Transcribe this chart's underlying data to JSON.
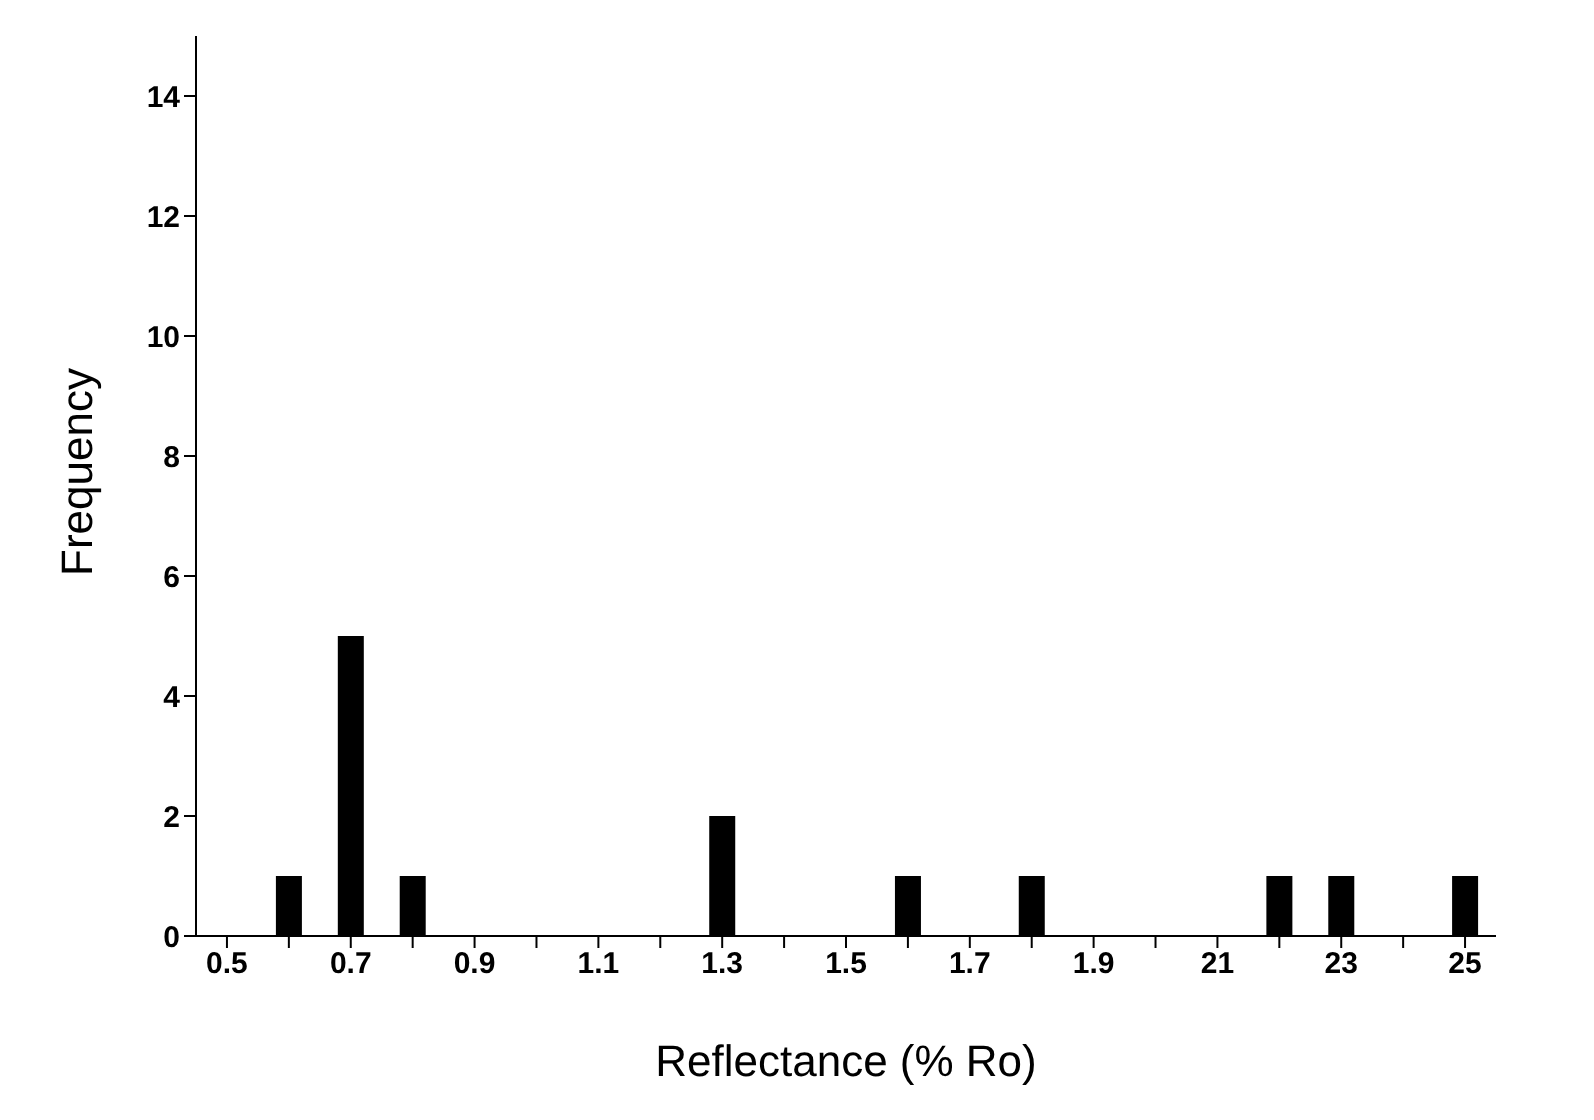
{
  "chart_data": {
    "type": "bar",
    "xlabel": "Reflectance  (% Ro)",
    "ylabel": "Frequency",
    "categories": [
      "0.5",
      null,
      "0.7",
      null,
      "0.9",
      null,
      "1.1",
      null,
      "1.3",
      null,
      "1.5",
      null,
      "1.7",
      null,
      "1.9",
      null,
      "21",
      null,
      "23",
      null,
      "25"
    ],
    "values": [
      0,
      1,
      5,
      1,
      0,
      0,
      0,
      0,
      2,
      0,
      0,
      1,
      0,
      1,
      0,
      0,
      0,
      1,
      1,
      0,
      1
    ],
    "color": "#000000",
    "ylim": [
      0,
      15
    ],
    "yticks": [
      0,
      2,
      4,
      6,
      8,
      10,
      12,
      14
    ],
    "grid": false,
    "legend": false
  }
}
